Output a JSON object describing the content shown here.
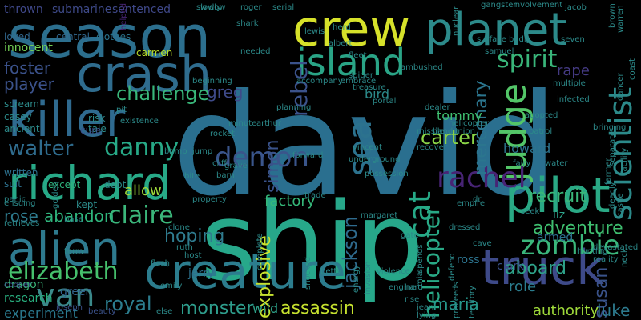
{
  "words": [
    {
      "text": "david",
      "color": "#2a6f8f"
    },
    {
      "text": "ship",
      "color": "#27a88a"
    },
    {
      "text": "season",
      "color": "#2c6f8e"
    },
    {
      "text": "crew",
      "color": "#d6e12a"
    },
    {
      "text": "planet",
      "color": "#2c8a8a"
    },
    {
      "text": "crash",
      "color": "#2f6c8e"
    },
    {
      "text": "island",
      "color": "#2aa486"
    },
    {
      "text": "killer",
      "color": "#2f6a8f"
    },
    {
      "text": "richard",
      "color": "#27a987"
    },
    {
      "text": "alien",
      "color": "#2e7a8e"
    },
    {
      "text": "creature",
      "color": "#2c7d8e"
    },
    {
      "text": "truck",
      "color": "#3e4a89"
    },
    {
      "text": "pilot",
      "color": "#2aa985"
    },
    {
      "text": "elizabeth",
      "color": "#46c16d"
    },
    {
      "text": "van",
      "color": "#3b8a8a"
    },
    {
      "text": "judge",
      "color": "#53c568"
    },
    {
      "text": "spirit",
      "color": "#39b57a"
    },
    {
      "text": "danny",
      "color": "#27a987"
    },
    {
      "text": "walter",
      "color": "#2f6c8e"
    },
    {
      "text": "demon",
      "color": "#3a558b"
    },
    {
      "text": "rachel",
      "color": "#482475"
    },
    {
      "text": "sea",
      "color": "#2c728e"
    },
    {
      "text": "claire",
      "color": "#3bb67a"
    },
    {
      "text": "zombie",
      "color": "#3ab67b"
    },
    {
      "text": "scientist",
      "color": "#2c8a8a"
    },
    {
      "text": "cat",
      "color": "#26a987"
    },
    {
      "text": "rebel",
      "color": "#3b528b"
    },
    {
      "text": "greg",
      "color": "#3e4a89"
    },
    {
      "text": "challenge",
      "color": "#39b77a"
    },
    {
      "text": "hoping",
      "color": "#2f7b8e"
    },
    {
      "text": "adventure",
      "color": "#3fbf70"
    },
    {
      "text": "susan",
      "color": "#3a538b"
    },
    {
      "text": "monster",
      "color": "#2e9d8c"
    },
    {
      "text": "assassin",
      "color": "#c6e12f"
    },
    {
      "text": "helicopter",
      "color": "#29a986"
    },
    {
      "text": "jackson",
      "color": "#2f6b8e"
    },
    {
      "text": "explosive",
      "color": "#c6e12f"
    },
    {
      "text": "royal",
      "color": "#2c7d8e"
    },
    {
      "text": "maria",
      "color": "#26988c"
    },
    {
      "text": "luke",
      "color": "#2d7a8e"
    },
    {
      "text": "player",
      "color": "#3b528b"
    },
    {
      "text": "foster",
      "color": "#3b528b"
    },
    {
      "text": "carter",
      "color": "#8ad547"
    },
    {
      "text": "simon",
      "color": "#3a538b"
    },
    {
      "text": "mercenary",
      "color": "#2b758e"
    },
    {
      "text": "recruit",
      "color": "#3ab77a"
    },
    {
      "text": "aboard",
      "color": "#2ea38a"
    },
    {
      "text": "rose",
      "color": "#2e7b8e"
    },
    {
      "text": "abandon",
      "color": "#2fb47c"
    },
    {
      "text": "allow",
      "color": "#9fda3a"
    },
    {
      "text": "role",
      "color": "#2b7d8e"
    },
    {
      "text": "authority",
      "color": "#9fda3a"
    },
    {
      "text": "factory",
      "color": "#35b779"
    },
    {
      "text": "tommy",
      "color": "#3fbf70"
    },
    {
      "text": "bird",
      "color": "#2c8a8a"
    },
    {
      "text": "rape",
      "color": "#443a83"
    },
    {
      "text": "howard",
      "color": "#2c738e"
    },
    {
      "text": "jerry",
      "color": "#2d728e"
    },
    {
      "text": "ross",
      "color": "#2c738e"
    },
    {
      "text": "clark",
      "color": "#3b528b"
    },
    {
      "text": "armed",
      "color": "#2c728e"
    },
    {
      "text": "liz",
      "color": "#2ea38a"
    },
    {
      "text": "wild",
      "color": "#2ea38a"
    },
    {
      "text": "green",
      "color": "#33638d"
    },
    {
      "text": "experiment",
      "color": "#2a798e"
    },
    {
      "text": "research",
      "color": "#29af7f"
    },
    {
      "text": "dragon",
      "color": "#3ab77a"
    },
    {
      "text": "submarine",
      "color": "#3e4a89"
    },
    {
      "text": "thrown",
      "color": "#3f4889"
    },
    {
      "text": "sentenced",
      "color": "#3f4889"
    },
    {
      "text": "innocent",
      "color": "#73d056"
    },
    {
      "text": "loved",
      "color": "#31678e"
    },
    {
      "text": "central",
      "color": "#31678e"
    },
    {
      "text": "clothes",
      "color": "#2b758e"
    },
    {
      "text": "carmen",
      "color": "#b8de29"
    },
    {
      "text": "helped",
      "color": "#482475"
    },
    {
      "text": "ancient",
      "color": "#2c8a8a"
    },
    {
      "text": "casey",
      "color": "#2c8a8a"
    },
    {
      "text": "scream",
      "color": "#2c8a8a"
    },
    {
      "text": "risk",
      "color": "#2c8a8a"
    },
    {
      "text": "tale",
      "color": "#2c8a8a"
    },
    {
      "text": "cure",
      "color": "#3b528b"
    },
    {
      "text": "suit",
      "color": "#2d718e"
    },
    {
      "text": "written",
      "color": "#2d718e"
    },
    {
      "text": "except",
      "color": "#2eb37c"
    },
    {
      "text": "debt",
      "color": "#2c8a8a"
    },
    {
      "text": "kept",
      "color": "#2c8a8a"
    },
    {
      "text": "panic",
      "color": "#2c8a8a"
    },
    {
      "text": "golden",
      "color": "#2c8a8a"
    },
    {
      "text": "ensuing",
      "color": "#2c8a8a"
    },
    {
      "text": "retrieves",
      "color": "#2c8a8a"
    },
    {
      "text": "base",
      "color": "#2c8a8a"
    },
    {
      "text": "term",
      "color": "#2c8a8a"
    },
    {
      "text": "cooper",
      "color": "#3b528b"
    },
    {
      "text": "joseph",
      "color": "#3b528b"
    },
    {
      "text": "beauty",
      "color": "#3b528b"
    },
    {
      "text": "emily",
      "color": "#2c8a8a"
    },
    {
      "text": "else",
      "color": "#2c8a8a"
    },
    {
      "text": "flash",
      "color": "#2c8a8a"
    },
    {
      "text": "host",
      "color": "#2c8a8a"
    },
    {
      "text": "clone",
      "color": "#2c8a8a"
    },
    {
      "text": "bite",
      "color": "#2c8a8a"
    },
    {
      "text": "rocket",
      "color": "#2c8a8a"
    },
    {
      "text": "minute",
      "color": "#2c8a8a"
    },
    {
      "text": "jump",
      "color": "#2c8a8a"
    },
    {
      "text": "cliff",
      "color": "#2c8a8a"
    },
    {
      "text": "barn",
      "color": "#2c8a8a"
    },
    {
      "text": "pit",
      "color": "#2c8a8a"
    },
    {
      "text": "existence",
      "color": "#2c8a8a"
    },
    {
      "text": "bomb",
      "color": "#2c8a8a"
    },
    {
      "text": "beginning",
      "color": "#2c8a8a"
    },
    {
      "text": "slowly",
      "color": "#2c8a8a"
    },
    {
      "text": "widow",
      "color": "#2c8a8a"
    },
    {
      "text": "roger",
      "color": "#2c8a8a"
    },
    {
      "text": "serial",
      "color": "#2c8a8a"
    },
    {
      "text": "shark",
      "color": "#2c8a8a"
    },
    {
      "text": "needed",
      "color": "#2c8a8a"
    },
    {
      "text": "lewis",
      "color": "#2c8a8a"
    },
    {
      "text": "albert",
      "color": "#2c8a8a"
    },
    {
      "text": "herd",
      "color": "#2c8a8a"
    },
    {
      "text": "fleet",
      "color": "#2c8a8a"
    },
    {
      "text": "spider",
      "color": "#2c8a8a"
    },
    {
      "text": "accompany",
      "color": "#2c8a8a"
    },
    {
      "text": "embrace",
      "color": "#2c8a8a"
    },
    {
      "text": "ambushed",
      "color": "#2c8a8a"
    },
    {
      "text": "nuclear",
      "color": "#2c8a8a"
    },
    {
      "text": "treasure",
      "color": "#2c8a8a"
    },
    {
      "text": "helicopter",
      "color": "#2c8a8a"
    },
    {
      "text": "dealer",
      "color": "#2c8a8a"
    },
    {
      "text": "portal",
      "color": "#2c8a8a"
    },
    {
      "text": "planning",
      "color": "#2c8a8a"
    },
    {
      "text": "arthur",
      "color": "#2c8a8a"
    },
    {
      "text": "underground",
      "color": "#2c8a8a"
    },
    {
      "text": "forward",
      "color": "#2c8a8a"
    },
    {
      "text": "vincent",
      "color": "#2c8a8a"
    },
    {
      "text": "grave",
      "color": "#2c8a8a"
    },
    {
      "text": "possession",
      "color": "#2c8a8a"
    },
    {
      "text": "trade",
      "color": "#2c8a8a"
    },
    {
      "text": "margaret",
      "color": "#2c8a8a"
    },
    {
      "text": "recover",
      "color": "#2c8a8a"
    },
    {
      "text": "missile",
      "color": "#2c8a8a"
    },
    {
      "text": "union",
      "color": "#2c8a8a"
    },
    {
      "text": "bandit",
      "color": "#2c8a8a"
    },
    {
      "text": "water",
      "color": "#2c8a8a"
    },
    {
      "text": "fairy",
      "color": "#2c8a8a"
    },
    {
      "text": "dr",
      "color": "#2c8a8a"
    },
    {
      "text": "cave",
      "color": "#2c8a8a"
    },
    {
      "text": "seek",
      "color": "#2c8a8a"
    },
    {
      "text": "devastated",
      "color": "#2c8a8a"
    },
    {
      "text": "hunting",
      "color": "#2c8a8a"
    },
    {
      "text": "reality",
      "color": "#2c8a8a"
    },
    {
      "text": "neck",
      "color": "#2c8a8a"
    },
    {
      "text": "defend",
      "color": "#2c8a8a"
    },
    {
      "text": "proceeds",
      "color": "#2c8a8a"
    },
    {
      "text": "territory",
      "color": "#2c8a8a"
    },
    {
      "text": "empire",
      "color": "#2c8a8a"
    },
    {
      "text": "dressed",
      "color": "#2c8a8a"
    },
    {
      "text": "gate",
      "color": "#2c8a8a"
    },
    {
      "text": "spends",
      "color": "#2c8a8a"
    },
    {
      "text": "mia",
      "color": "#2c8a8a"
    },
    {
      "text": "violence",
      "color": "#2c8a8a"
    },
    {
      "text": "engine",
      "color": "#2c8a8a"
    },
    {
      "text": "hard",
      "color": "#2c8a8a"
    },
    {
      "text": "rise",
      "color": "#2c8a8a"
    },
    {
      "text": "jean",
      "color": "#2c8a8a"
    },
    {
      "text": "lying",
      "color": "#2c8a8a"
    },
    {
      "text": "betty",
      "color": "#2c8a8a"
    },
    {
      "text": "shocked",
      "color": "#2c8a8a"
    },
    {
      "text": "energy",
      "color": "#2c8a8a"
    },
    {
      "text": "invasion",
      "color": "#2c8a8a"
    },
    {
      "text": "complete",
      "color": "#2c8a8a"
    },
    {
      "text": "property",
      "color": "#2c8a8a"
    },
    {
      "text": "gangster",
      "color": "#2c8a8a"
    },
    {
      "text": "involvement",
      "color": "#2c8a8a"
    },
    {
      "text": "jacob",
      "color": "#2c8a8a"
    },
    {
      "text": "brown",
      "color": "#2c8a8a"
    },
    {
      "text": "warren",
      "color": "#2c8a8a"
    },
    {
      "text": "surface",
      "color": "#2c8a8a"
    },
    {
      "text": "badly",
      "color": "#2c8a8a"
    },
    {
      "text": "seven",
      "color": "#2c8a8a"
    },
    {
      "text": "samuel",
      "color": "#2c8a8a"
    },
    {
      "text": "coast",
      "color": "#2c8a8a"
    },
    {
      "text": "dancer",
      "color": "#2c8a8a"
    },
    {
      "text": "separate",
      "color": "#2c8a8a"
    },
    {
      "text": "multiple",
      "color": "#2c8a8a"
    },
    {
      "text": "bringing",
      "color": "#2c8a8a"
    },
    {
      "text": "farmer",
      "color": "#2c8a8a"
    },
    {
      "text": "deadly",
      "color": "#2c8a8a"
    },
    {
      "text": "castle",
      "color": "#2c8a8a"
    },
    {
      "text": "facility",
      "color": "#2c8a8a"
    },
    {
      "text": "infected",
      "color": "#2c8a8a"
    },
    {
      "text": "patrol",
      "color": "#2c8a8a"
    },
    {
      "text": "adopted",
      "color": "#2c8a8a"
    },
    {
      "text": "ruth",
      "color": "#2c8a8a"
    },
    {
      "text": "actor",
      "color": "#2c8a8a"
    },
    {
      "text": "c",
      "color": "#2c8a8a"
    },
    {
      "text": "x",
      "color": "#2c8a8a"
    }
  ]
}
